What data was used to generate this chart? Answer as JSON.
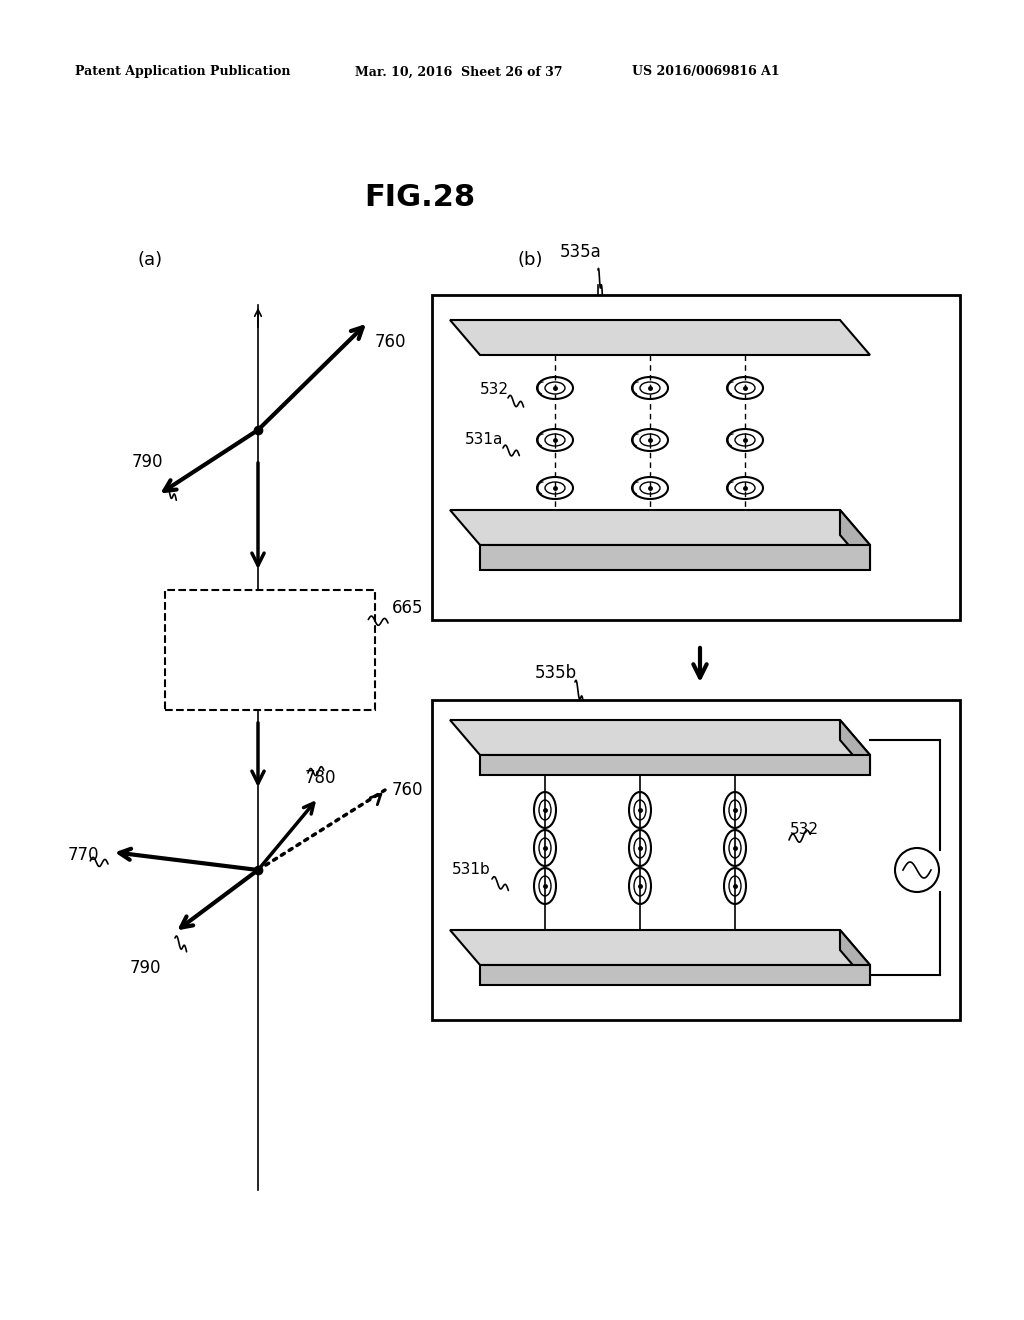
{
  "title": "FIG.28",
  "header_left": "Patent Application Publication",
  "header_mid": "Mar. 10, 2016  Sheet 26 of 37",
  "header_right": "US 2016/0069816 A1",
  "bg_color": "#ffffff",
  "text_color": "#000000"
}
